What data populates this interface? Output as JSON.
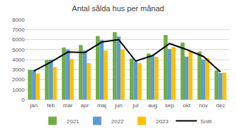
{
  "chart_data": {
    "type": "bar",
    "title": "Antal sålda hus per månad",
    "categories": [
      "jan",
      "feb",
      "mar",
      "apr",
      "maj",
      "jun",
      "jul",
      "aug",
      "sep",
      "okt",
      "nov",
      "dec"
    ],
    "series": [
      {
        "name": "2021",
        "type": "bar",
        "color": "#70ad47",
        "values": [
          2950,
          3950,
          5200,
          5450,
          6350,
          6750,
          4100,
          4600,
          6450,
          5700,
          4800,
          2900
        ]
      },
      {
        "name": "2022",
        "type": "bar",
        "color": "#5b9bd5",
        "values": [
          2950,
          4000,
          5000,
          4900,
          5950,
          6300,
          3800,
          4400,
          5050,
          4300,
          4000,
          2650
        ]
      },
      {
        "name": "2023",
        "type": "bar",
        "color": "#ffc000",
        "values": [
          2600,
          3250,
          4050,
          3650,
          4900,
          5000,
          3650,
          4250,
          5250,
          4850,
          4150,
          2700
        ]
      },
      {
        "name": "Snitt",
        "type": "line",
        "color": "#000000",
        "values": [
          2850,
          3750,
          4750,
          4700,
          5750,
          6000,
          3850,
          4400,
          5600,
          5000,
          4300,
          2750
        ]
      }
    ],
    "ylim": [
      0,
      8000
    ],
    "yticks": [
      0,
      1000,
      2000,
      3000,
      4000,
      5000,
      6000,
      7000,
      8000
    ],
    "grid": true,
    "legend": "bottom"
  }
}
